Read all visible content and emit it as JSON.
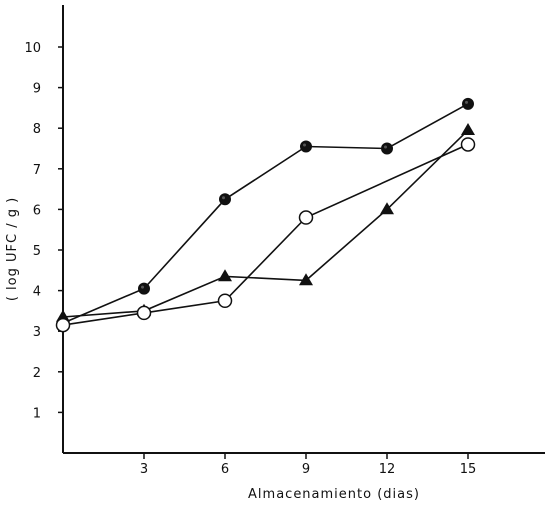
{
  "chart_data": {
    "type": "line",
    "xlabel": "Almacenamiento (dias)",
    "ylabel": "( log UFC / g )",
    "xlim": [
      0,
      18
    ],
    "ylim": [
      0,
      11
    ],
    "xticks": [
      3,
      6,
      9,
      12,
      15
    ],
    "xtick_labels": [
      "3",
      "6",
      "9",
      "12",
      "15"
    ],
    "yticks": [
      1,
      2,
      3,
      4,
      5,
      6,
      7,
      8,
      9,
      10
    ],
    "ytick_labels": [
      "1",
      "2",
      "3",
      "4",
      "5",
      "6",
      "7",
      "8",
      "9",
      "10"
    ],
    "grid": false,
    "legend": "none",
    "series": [
      {
        "marker": "filled-circle",
        "color": "#111111",
        "points": [
          [
            0,
            3.2
          ],
          [
            3,
            4.05
          ],
          [
            6,
            6.25
          ],
          [
            9,
            7.55
          ],
          [
            12,
            7.5
          ],
          [
            15,
            8.6
          ]
        ]
      },
      {
        "marker": "filled-triangle",
        "color": "#111111",
        "points": [
          [
            0,
            3.35
          ],
          [
            3,
            3.5
          ],
          [
            6,
            4.35
          ],
          [
            9,
            4.25
          ],
          [
            12,
            6.0
          ],
          [
            15,
            7.95
          ]
        ]
      },
      {
        "marker": "open-circle",
        "color": "#111111",
        "points": [
          [
            0,
            3.15
          ],
          [
            3,
            3.45
          ],
          [
            6,
            3.75
          ],
          [
            9,
            5.8
          ],
          [
            15,
            7.6
          ]
        ]
      }
    ]
  }
}
